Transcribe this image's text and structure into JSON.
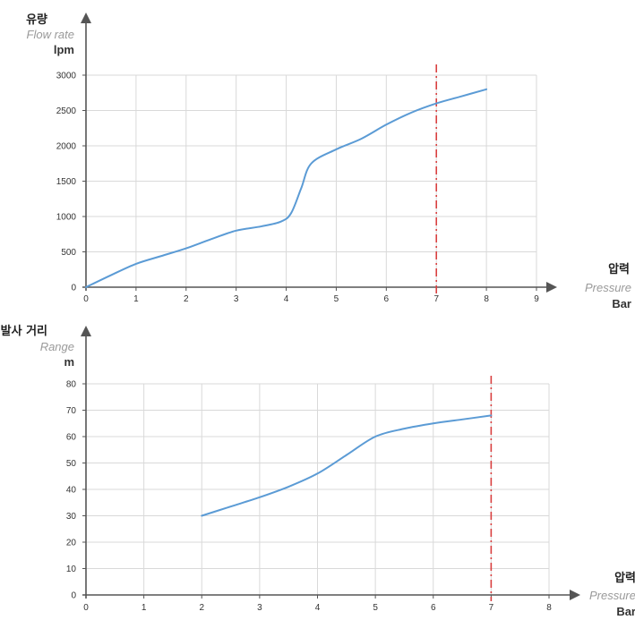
{
  "chart_data": [
    {
      "type": "line",
      "y_label_ko": "유량",
      "y_label_en": "Flow rate",
      "y_unit": "lpm",
      "x_label_ko": "압력",
      "x_label_en": "Pressure",
      "x_unit": "Bar",
      "xlim": [
        0,
        9
      ],
      "ylim": [
        0,
        3000
      ],
      "x_ticks": [
        0,
        1,
        2,
        3,
        4,
        5,
        6,
        7,
        8,
        9
      ],
      "y_ticks": [
        0,
        500,
        1000,
        1500,
        2000,
        2500,
        3000
      ],
      "grid": true,
      "reference_line_x": 7,
      "reference_color": "#d94040",
      "series_color": "#5b9bd5",
      "points": [
        [
          0,
          0
        ],
        [
          0.5,
          170
        ],
        [
          1,
          330
        ],
        [
          1.5,
          440
        ],
        [
          2,
          550
        ],
        [
          2.5,
          680
        ],
        [
          3,
          800
        ],
        [
          3.5,
          860
        ],
        [
          3.9,
          930
        ],
        [
          4.1,
          1050
        ],
        [
          4.3,
          1400
        ],
        [
          4.5,
          1750
        ],
        [
          5,
          1950
        ],
        [
          5.5,
          2100
        ],
        [
          6,
          2300
        ],
        [
          6.5,
          2470
        ],
        [
          7,
          2600
        ],
        [
          7.5,
          2700
        ],
        [
          8,
          2800
        ]
      ]
    },
    {
      "type": "line",
      "y_label_ko": "발사 거리",
      "y_label_en": "Range",
      "y_unit": "m",
      "x_label_ko": "압력",
      "x_label_en": "Pressure",
      "x_unit": "Bar",
      "xlim": [
        0,
        8
      ],
      "ylim": [
        0,
        80
      ],
      "x_ticks": [
        0,
        1,
        2,
        3,
        4,
        5,
        6,
        7,
        8
      ],
      "y_ticks": [
        0,
        10,
        20,
        30,
        40,
        50,
        60,
        70,
        80
      ],
      "grid": true,
      "reference_line_x": 7,
      "reference_color": "#d94040",
      "series_color": "#5b9bd5",
      "points": [
        [
          2,
          30
        ],
        [
          2.5,
          33.5
        ],
        [
          3,
          37
        ],
        [
          3.5,
          41
        ],
        [
          4,
          46
        ],
        [
          4.5,
          53
        ],
        [
          5,
          60
        ],
        [
          5.5,
          63
        ],
        [
          6,
          65
        ],
        [
          6.5,
          66.5
        ],
        [
          7,
          68
        ]
      ]
    }
  ]
}
